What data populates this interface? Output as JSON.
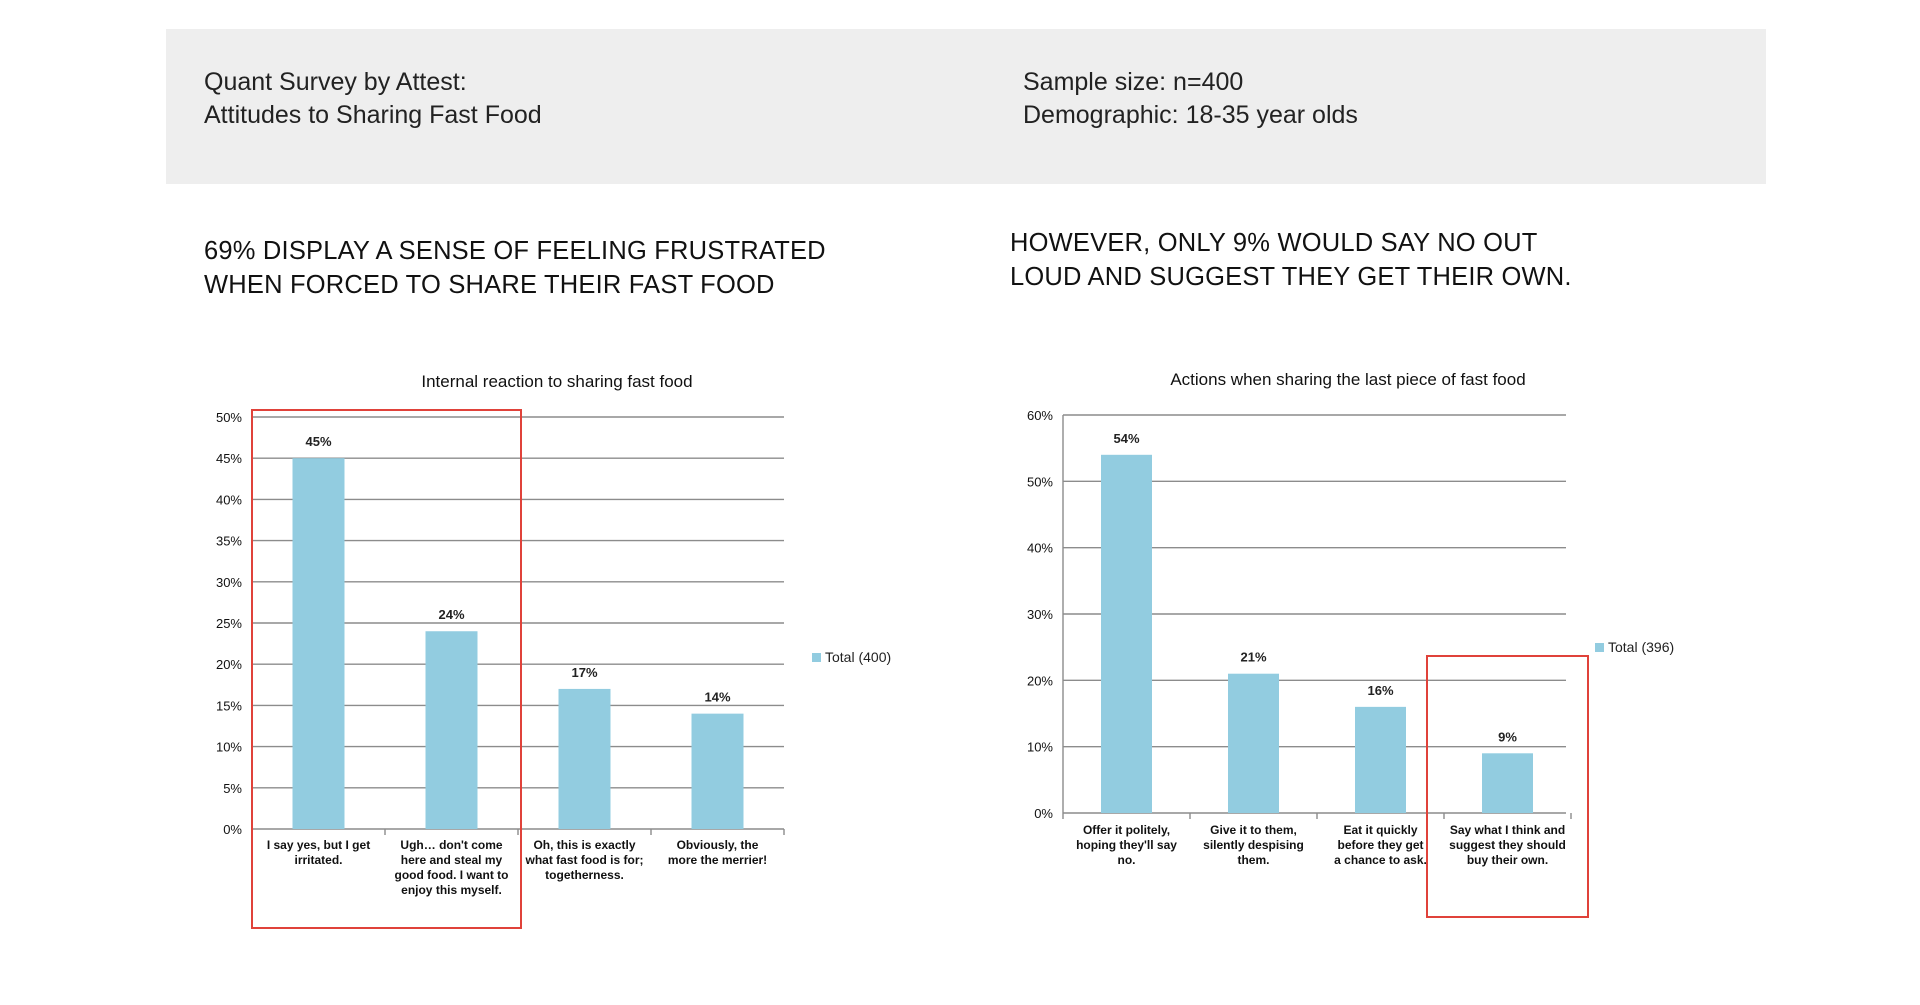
{
  "header": {
    "left_line1": "Quant Survey by Attest:",
    "left_line2": "Attitudes to Sharing Fast Food",
    "right_line1": "Sample size: n=400",
    "right_line2": "Demographic: 18-35 year olds"
  },
  "headlines": {
    "left_line1": "69% DISPLAY A SENSE OF FEELING FRUSTRATED",
    "left_line2": "WHEN FORCED TO SHARE THEIR FAST FOOD",
    "right_line1": "HOWEVER, ONLY 9% WOULD SAY NO OUT",
    "right_line2": "LOUD AND SUGGEST THEY GET THEIR OWN."
  },
  "colors": {
    "bar": "#92cce0",
    "highlight": "#e0423a",
    "grid": "#8c8c8c",
    "header_bg": "#eeeeee"
  },
  "chart_data": [
    {
      "type": "bar",
      "title": "Internal reaction to sharing fast food",
      "categories": [
        "I say yes, but I get irritated.",
        "Ugh… don't come here and steal my good food. I want to enjoy this myself.",
        "Oh, this is exactly what fast food is for; togetherness.",
        "Obviously, the more the merrier!"
      ],
      "category_lines": [
        [
          "I say yes, but I get",
          "irritated."
        ],
        [
          "Ugh… don't come",
          "here and steal my",
          "good food. I want to",
          "enjoy this myself."
        ],
        [
          "Oh, this is exactly",
          "what fast food is for;",
          "togetherness."
        ],
        [
          "Obviously, the",
          "more the merrier!"
        ]
      ],
      "series": [
        {
          "name": "Total (400)",
          "values": [
            45,
            24,
            17,
            14
          ]
        }
      ],
      "data_labels": [
        "45%",
        "24%",
        "17%",
        "14%"
      ],
      "ylim": [
        0,
        50
      ],
      "yticks": [
        "0%",
        "5%",
        "10%",
        "15%",
        "20%",
        "25%",
        "30%",
        "35%",
        "40%",
        "45%",
        "50%"
      ],
      "grid": true,
      "legend": "right",
      "highlighted_categories": [
        0,
        1
      ]
    },
    {
      "type": "bar",
      "title": "Actions when sharing the last piece of fast food",
      "categories": [
        "Offer it politely, hoping they'll say no.",
        "Give it to them, silently despising them.",
        "Eat it quickly before they get a chance to ask.",
        "Say what I think and suggest they should buy their own."
      ],
      "category_lines": [
        [
          "Offer it politely,",
          "hoping they'll say",
          "no."
        ],
        [
          "Give it to them,",
          "silently despising",
          "them."
        ],
        [
          "Eat it quickly",
          "before they get",
          "a chance to ask."
        ],
        [
          "Say what I think and",
          "suggest they should",
          "buy their own."
        ]
      ],
      "series": [
        {
          "name": "Total (396)",
          "values": [
            54,
            21,
            16,
            9
          ]
        }
      ],
      "data_labels": [
        "54%",
        "21%",
        "16%",
        "9%"
      ],
      "ylim": [
        0,
        60
      ],
      "yticks": [
        "0%",
        "10%",
        "20%",
        "30%",
        "40%",
        "50%",
        "60%"
      ],
      "grid": true,
      "legend": "right",
      "highlighted_categories": [
        3
      ]
    }
  ]
}
